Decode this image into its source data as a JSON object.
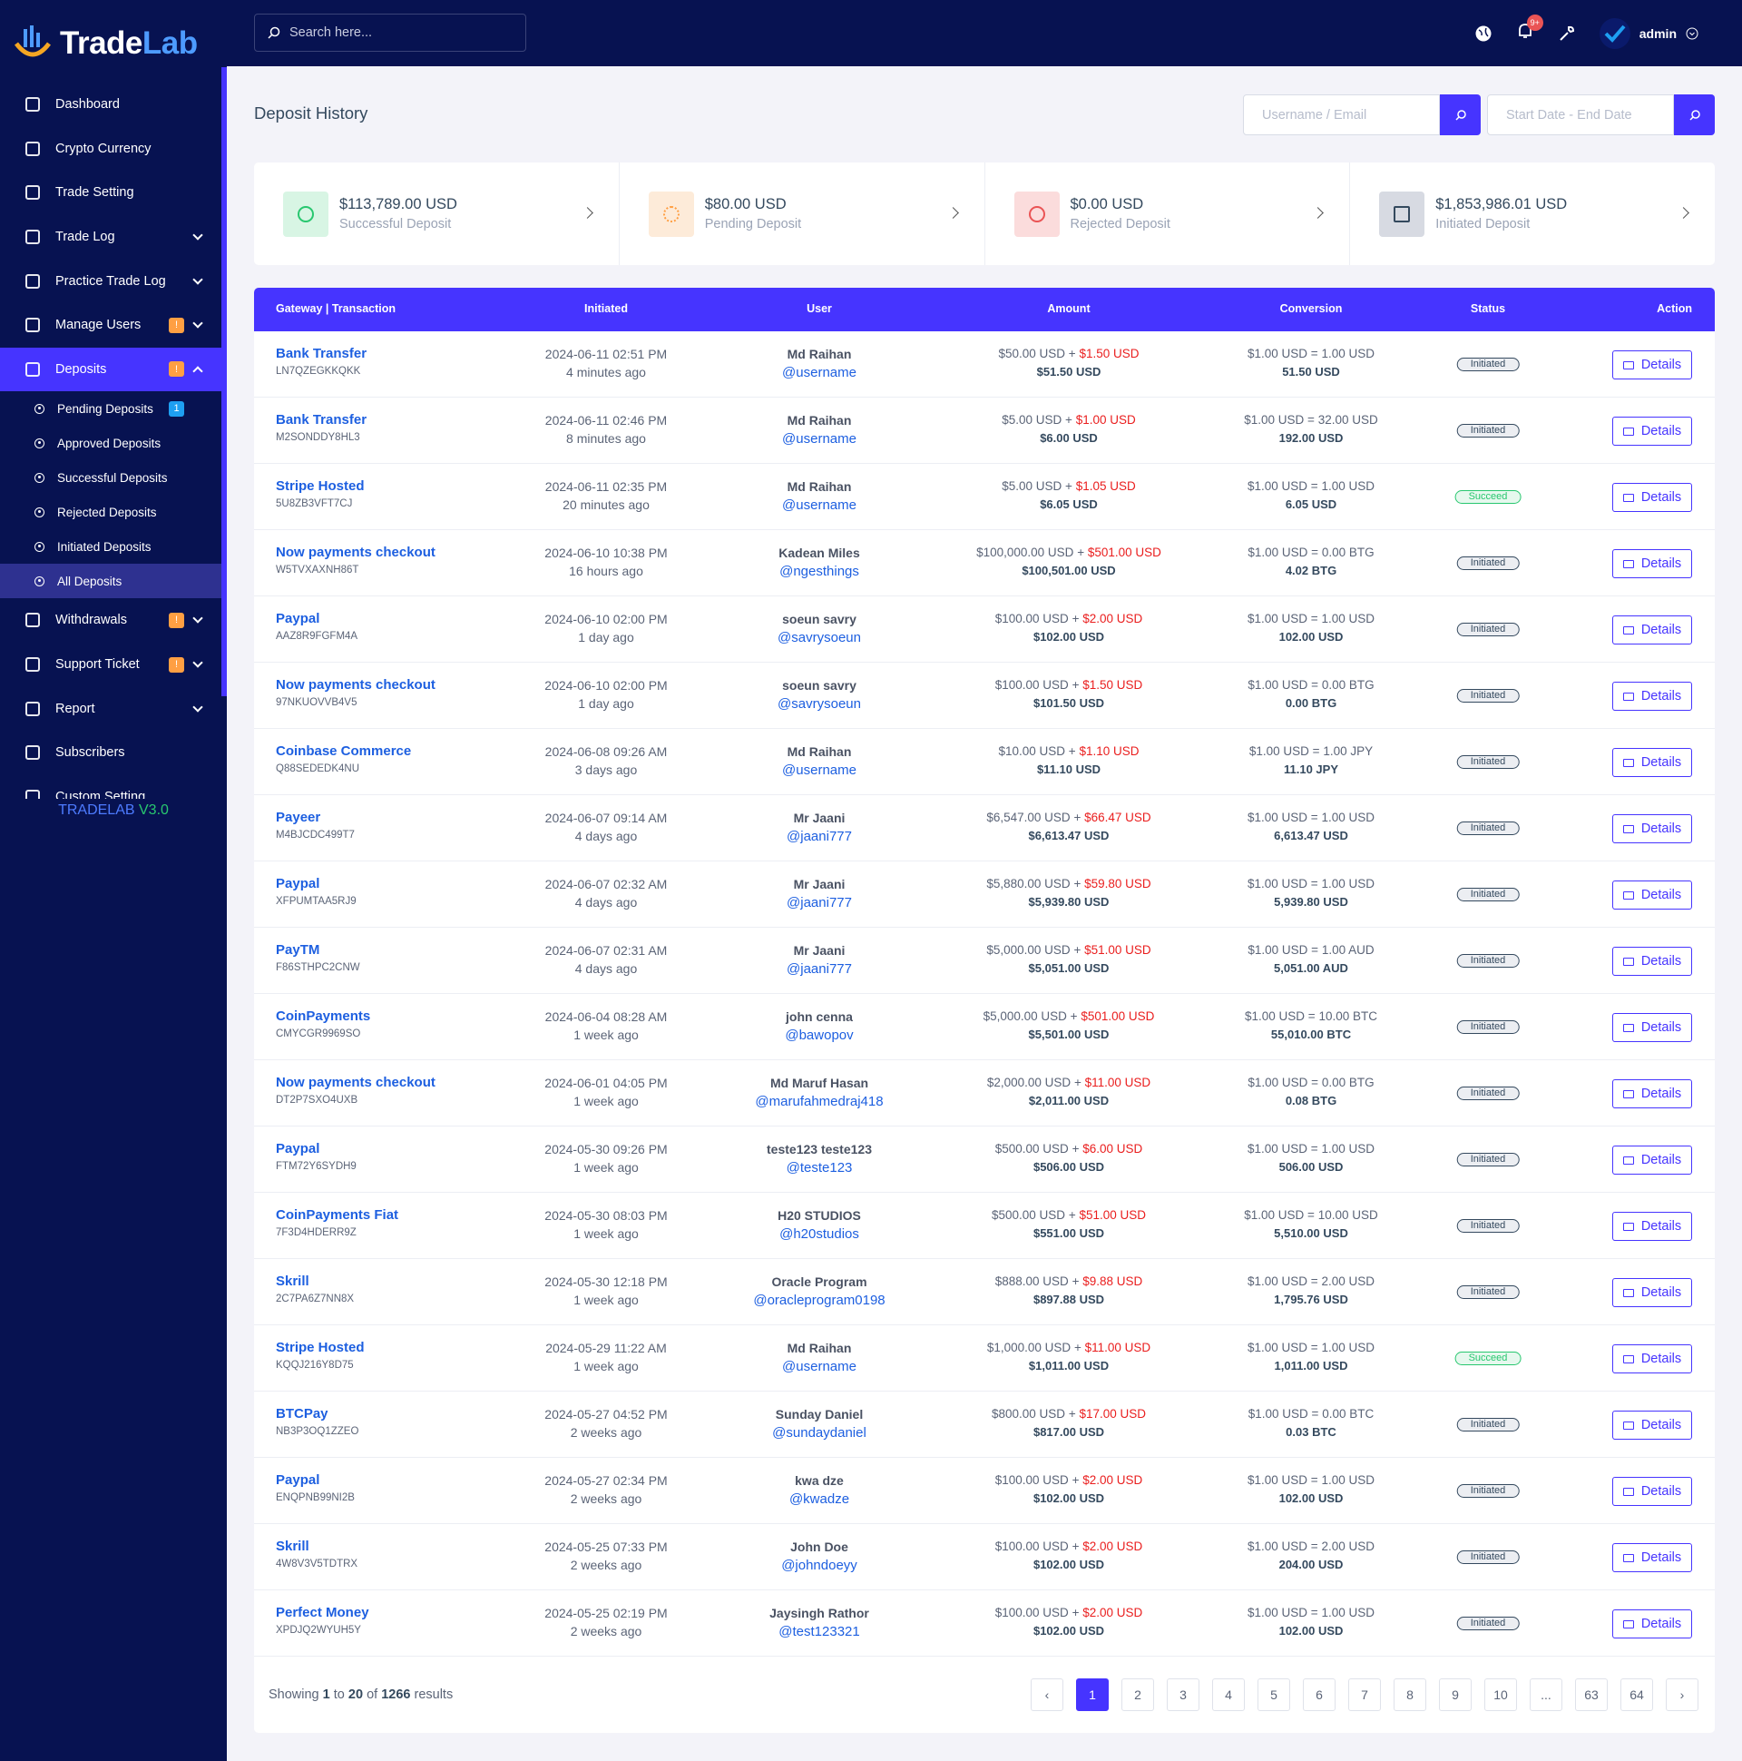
{
  "brand": {
    "part1": "Trade",
    "part2": "Lab"
  },
  "topbar": {
    "search_placeholder": "Search here...",
    "notification_count": "9+",
    "user": "admin"
  },
  "sidebar": {
    "menu": [
      {
        "label": "Dashboard"
      },
      {
        "label": "Crypto Currency"
      },
      {
        "label": "Trade Setting"
      },
      {
        "label": "Trade Log",
        "has_submenu": true
      },
      {
        "label": "Practice Trade Log",
        "has_submenu": true
      },
      {
        "label": "Manage Users",
        "badge": "!",
        "has_submenu": true
      },
      {
        "label": "Deposits",
        "badge": "!",
        "has_submenu": true,
        "expanded": true,
        "active": true,
        "children": [
          {
            "label": "Pending Deposits",
            "badge": "1"
          },
          {
            "label": "Approved Deposits"
          },
          {
            "label": "Successful Deposits"
          },
          {
            "label": "Rejected Deposits"
          },
          {
            "label": "Initiated Deposits"
          },
          {
            "label": "All Deposits",
            "active": true
          }
        ]
      },
      {
        "label": "Withdrawals",
        "badge": "!",
        "has_submenu": true
      },
      {
        "label": "Support Ticket",
        "badge": "!",
        "has_submenu": true
      },
      {
        "label": "Report",
        "has_submenu": true
      },
      {
        "label": "Subscribers"
      },
      {
        "label": "Custom Setting"
      }
    ],
    "version_name": "TRADELAB",
    "version_number": "V3.0"
  },
  "page": {
    "title": "Deposit History",
    "user_filter_placeholder": "Username / Email",
    "date_filter_placeholder": "Start Date - End Date"
  },
  "stats": [
    {
      "value": "$113,789.00 USD",
      "label": "Successful Deposit",
      "color": "#28c76f",
      "bg": "#d8f5e4"
    },
    {
      "value": "$80.00 USD",
      "label": "Pending Deposit",
      "color": "#ff9f43",
      "bg": "#fdebd9"
    },
    {
      "value": "$0.00 USD",
      "label": "Rejected Deposit",
      "color": "#ea5455",
      "bg": "#fbdcdc"
    },
    {
      "value": "$1,853,986.01 USD",
      "label": "Initiated Deposit",
      "color": "#34495e",
      "bg": "#d7dae2"
    }
  ],
  "table": {
    "headers": [
      "Gateway | Transaction",
      "Initiated",
      "User",
      "Amount",
      "Conversion",
      "Status",
      "Action"
    ],
    "plus": "+",
    "action_label": "Details",
    "rows": [
      [
        "Bank Transfer",
        "LN7QZEGKKQKK",
        "2024-06-11 02:51 PM",
        "4 minutes ago",
        "Md Raihan",
        "@username",
        "$50.00 USD",
        "$1.50 USD",
        "$51.50 USD",
        "$1.00 USD = 1.00 USD",
        "51.50 USD",
        "Initiated",
        "#34495e"
      ],
      [
        "Bank Transfer",
        "M2SONDDY8HL3",
        "2024-06-11 02:46 PM",
        "8 minutes ago",
        "Md Raihan",
        "@username",
        "$5.00 USD",
        "$1.00 USD",
        "$6.00 USD",
        "$1.00 USD = 32.00 USD",
        "192.00 USD",
        "Initiated",
        "#34495e"
      ],
      [
        "Stripe Hosted",
        "5U8ZB3VFT7CJ",
        "2024-06-11 02:35 PM",
        "20 minutes ago",
        "Md Raihan",
        "@username",
        "$5.00 USD",
        "$1.05 USD",
        "$6.05 USD",
        "$1.00 USD = 1.00 USD",
        "6.05 USD",
        "Succeed",
        "#28c76f"
      ],
      [
        "Now payments checkout",
        "W5TVXAXNH86T",
        "2024-06-10 10:38 PM",
        "16 hours ago",
        "Kadean Miles",
        "@ngesthings",
        "$100,000.00 USD",
        "$501.00 USD",
        "$100,501.00 USD",
        "$1.00 USD = 0.00 BTG",
        "4.02 BTG",
        "Initiated",
        "#34495e"
      ],
      [
        "Paypal",
        "AAZ8R9FGFM4A",
        "2024-06-10 02:00 PM",
        "1 day ago",
        "soeun savry",
        "@savrysoeun",
        "$100.00 USD",
        "$2.00 USD",
        "$102.00 USD",
        "$1.00 USD = 1.00 USD",
        "102.00 USD",
        "Initiated",
        "#34495e"
      ],
      [
        "Now payments checkout",
        "97NKUOVVB4V5",
        "2024-06-10 02:00 PM",
        "1 day ago",
        "soeun savry",
        "@savrysoeun",
        "$100.00 USD",
        "$1.50 USD",
        "$101.50 USD",
        "$1.00 USD = 0.00 BTG",
        "0.00 BTG",
        "Initiated",
        "#34495e"
      ],
      [
        "Coinbase Commerce",
        "Q88SEDEDK4NU",
        "2024-06-08 09:26 AM",
        "3 days ago",
        "Md Raihan",
        "@username",
        "$10.00 USD",
        "$1.10 USD",
        "$11.10 USD",
        "$1.00 USD = 1.00 JPY",
        "11.10 JPY",
        "Initiated",
        "#34495e"
      ],
      [
        "Payeer",
        "M4BJCDC499T7",
        "2024-06-07 09:14 AM",
        "4 days ago",
        "Mr Jaani",
        "@jaani777",
        "$6,547.00 USD",
        "$66.47 USD",
        "$6,613.47 USD",
        "$1.00 USD = 1.00 USD",
        "6,613.47 USD",
        "Initiated",
        "#34495e"
      ],
      [
        "Paypal",
        "XFPUMTAA5RJ9",
        "2024-06-07 02:32 AM",
        "4 days ago",
        "Mr Jaani",
        "@jaani777",
        "$5,880.00 USD",
        "$59.80 USD",
        "$5,939.80 USD",
        "$1.00 USD = 1.00 USD",
        "5,939.80 USD",
        "Initiated",
        "#34495e"
      ],
      [
        "PayTM",
        "F86STHPC2CNW",
        "2024-06-07 02:31 AM",
        "4 days ago",
        "Mr Jaani",
        "@jaani777",
        "$5,000.00 USD",
        "$51.00 USD",
        "$5,051.00 USD",
        "$1.00 USD = 1.00 AUD",
        "5,051.00 AUD",
        "Initiated",
        "#34495e"
      ],
      [
        "CoinPayments",
        "CMYCGR9969SO",
        "2024-06-04 08:28 AM",
        "1 week ago",
        "john cenna",
        "@bawopov",
        "$5,000.00 USD",
        "$501.00 USD",
        "$5,501.00 USD",
        "$1.00 USD = 10.00 BTC",
        "55,010.00 BTC",
        "Initiated",
        "#34495e"
      ],
      [
        "Now payments checkout",
        "DT2P7SXO4UXB",
        "2024-06-01 04:05 PM",
        "1 week ago",
        "Md Maruf Hasan",
        "@marufahmedraj418",
        "$2,000.00 USD",
        "$11.00 USD",
        "$2,011.00 USD",
        "$1.00 USD = 0.00 BTG",
        "0.08 BTG",
        "Initiated",
        "#34495e"
      ],
      [
        "Paypal",
        "FTM72Y6SYDH9",
        "2024-05-30 09:26 PM",
        "1 week ago",
        "teste123 teste123",
        "@teste123",
        "$500.00 USD",
        "$6.00 USD",
        "$506.00 USD",
        "$1.00 USD = 1.00 USD",
        "506.00 USD",
        "Initiated",
        "#34495e"
      ],
      [
        "CoinPayments Fiat",
        "7F3D4HDERR9Z",
        "2024-05-30 08:03 PM",
        "1 week ago",
        "H20 STUDIOS",
        "@h20studios",
        "$500.00 USD",
        "$51.00 USD",
        "$551.00 USD",
        "$1.00 USD = 10.00 USD",
        "5,510.00 USD",
        "Initiated",
        "#34495e"
      ],
      [
        "Skrill",
        "2C7PA6Z7NN8X",
        "2024-05-30 12:18 PM",
        "1 week ago",
        "Oracle Program",
        "@oracleprogram0198",
        "$888.00 USD",
        "$9.88 USD",
        "$897.88 USD",
        "$1.00 USD = 2.00 USD",
        "1,795.76 USD",
        "Initiated",
        "#34495e"
      ],
      [
        "Stripe Hosted",
        "KQQJ216Y8D75",
        "2024-05-29 11:22 AM",
        "1 week ago",
        "Md Raihan",
        "@username",
        "$1,000.00 USD",
        "$11.00 USD",
        "$1,011.00 USD",
        "$1.00 USD = 1.00 USD",
        "1,011.00 USD",
        "Succeed",
        "#28c76f"
      ],
      [
        "BTCPay",
        "NB3P3OQ1ZZEO",
        "2024-05-27 04:52 PM",
        "2 weeks ago",
        "Sunday Daniel",
        "@sundaydaniel",
        "$800.00 USD",
        "$17.00 USD",
        "$817.00 USD",
        "$1.00 USD = 0.00 BTC",
        "0.03 BTC",
        "Initiated",
        "#34495e"
      ],
      [
        "Paypal",
        "ENQPNB99NI2B",
        "2024-05-27 02:34 PM",
        "2 weeks ago",
        "kwa dze",
        "@kwadze",
        "$100.00 USD",
        "$2.00 USD",
        "$102.00 USD",
        "$1.00 USD = 1.00 USD",
        "102.00 USD",
        "Initiated",
        "#34495e"
      ],
      [
        "Skrill",
        "4W8V3V5TDTRX",
        "2024-05-25 07:33 PM",
        "2 weeks ago",
        "John Doe",
        "@johndoeyy",
        "$100.00 USD",
        "$2.00 USD",
        "$102.00 USD",
        "$1.00 USD = 2.00 USD",
        "204.00 USD",
        "Initiated",
        "#34495e"
      ],
      [
        "Perfect Money",
        "XPDJQ2WYUH5Y",
        "2024-05-25 02:19 PM",
        "2 weeks ago",
        "Jaysingh Rathor",
        "@test123321",
        "$100.00 USD",
        "$2.00 USD",
        "$102.00 USD",
        "$1.00 USD = 1.00 USD",
        "102.00 USD",
        "Initiated",
        "#34495e"
      ]
    ]
  },
  "pagination": {
    "showing": "Showing",
    "from": "1",
    "to_word": "to",
    "to": "20",
    "of_word": "of",
    "total": "1266",
    "results_word": "results",
    "pages": [
      "‹",
      "1",
      "2",
      "3",
      "4",
      "5",
      "6",
      "7",
      "8",
      "9",
      "10",
      "...",
      "63",
      "64",
      "›"
    ],
    "current": 1
  }
}
